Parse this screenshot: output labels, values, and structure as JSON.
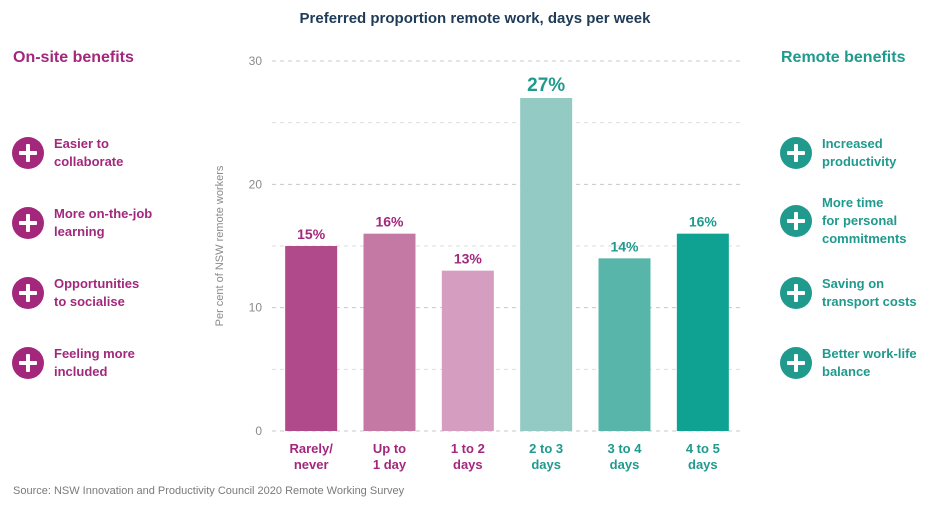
{
  "left_panel": {
    "heading": "On-site benefits",
    "items": [
      {
        "line1": "Easier to",
        "line2": "collaborate",
        "icon": "plus-circle-icon"
      },
      {
        "line1": "More on-the-job",
        "line2": "learning",
        "icon": "plus-circle-icon"
      },
      {
        "line1": "Opportunities",
        "line2": "to socialise",
        "icon": "plus-circle-icon"
      },
      {
        "line1": "Feeling more",
        "line2": "included",
        "icon": "plus-circle-icon"
      }
    ]
  },
  "right_panel": {
    "heading": "Remote benefits",
    "items": [
      {
        "lines": [
          "Increased",
          "productivity"
        ],
        "icon": "plus-circle-icon"
      },
      {
        "lines": [
          "More time",
          "for personal",
          "commitments"
        ],
        "icon": "plus-circle-icon"
      },
      {
        "lines": [
          "Saving on",
          "transport costs"
        ],
        "icon": "plus-circle-icon"
      },
      {
        "lines": [
          "Better work-life",
          "balance"
        ],
        "icon": "plus-circle-icon"
      }
    ]
  },
  "source": "Source: NSW Innovation and Productivity Council 2020 Remote Working Survey",
  "colors": {
    "onsite": "#a3287c",
    "remote": "#1f9a8d",
    "title": "#1f3b57"
  },
  "chart_data": {
    "type": "bar",
    "title": "Preferred proportion remote work, days per week",
    "ylabel": "Per cent of NSW remote workers",
    "xlabel": "",
    "ylim": [
      0,
      30
    ],
    "yticks": [
      0,
      10,
      20,
      30
    ],
    "grid": true,
    "categories": [
      [
        "Rarely/",
        "never"
      ],
      [
        "Up to",
        "1 day"
      ],
      [
        "1 to 2",
        "days"
      ],
      [
        "2 to 3",
        "days"
      ],
      [
        "3 to 4",
        "days"
      ],
      [
        "4 to 5",
        "days"
      ]
    ],
    "values": [
      15,
      16,
      13,
      27,
      14,
      16
    ],
    "value_labels": [
      "15%",
      "16%",
      "13%",
      "27%",
      "14%",
      "16%"
    ],
    "bar_colors": [
      "#b04a8a",
      "#c478a4",
      "#d59dbf",
      "#93cbc4",
      "#58b5a9",
      "#0fa191"
    ],
    "label_colors": [
      "#a3287c",
      "#a3287c",
      "#a3287c",
      "#1f9a8d",
      "#1f9a8d",
      "#1f9a8d"
    ]
  }
}
